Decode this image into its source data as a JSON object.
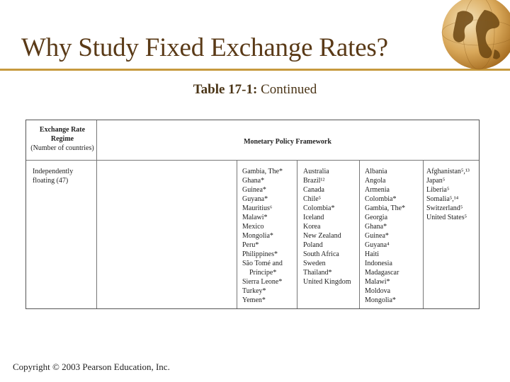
{
  "slide": {
    "title": "Why Study Fixed Exchange Rates?",
    "subtitle_number": "Table 17-1:",
    "subtitle_text": "Continued",
    "copyright": "Copyright © 2003 Pearson Education, Inc.",
    "accent_color": "#c79a3e",
    "title_color": "#5a3a17",
    "globe_icon": "globe-icon"
  },
  "table": {
    "header_left": {
      "line1": "Exchange Rate",
      "line2": "Regime",
      "line3": "(Number of countries)"
    },
    "header_right": "Monetary Policy Framework",
    "regime": {
      "line1": "Independently",
      "line2": "floating (47)"
    },
    "columns": [
      [
        "Gambia, The*",
        "Ghana*",
        "Guinea*",
        "Guyana*",
        "Mauritius⁶",
        "Malawi*",
        "Mexico",
        "Mongolia*",
        "Peru*",
        "Philippines*",
        "São Tomé and",
        "Príncipe*",
        "Sierra Leone*",
        "Turkey*",
        "Yemen*"
      ],
      [
        "Australia",
        "Brazil¹²",
        "Canada",
        "Chile⁵",
        "Colombia*",
        "Iceland",
        "Korea",
        "New Zealand",
        "Poland",
        "South Africa",
        "Sweden",
        "Thailand*",
        "United Kingdom"
      ],
      [
        "Albania",
        "Angola",
        "Armenia",
        "Colombia*",
        "Gambia, The*",
        "Georgia",
        "Ghana*",
        "Guinea*",
        "Guyana⁴",
        "Haiti",
        "Indonesia",
        "Madagascar",
        "Malawi*",
        "Moldova",
        "Mongolia*"
      ],
      [
        "Afghanistan⁵,¹³",
        "Japan⁵",
        "Liberia⁵",
        "Somalia⁵,¹⁴",
        "Switzerland⁵",
        "United States⁵"
      ]
    ]
  }
}
